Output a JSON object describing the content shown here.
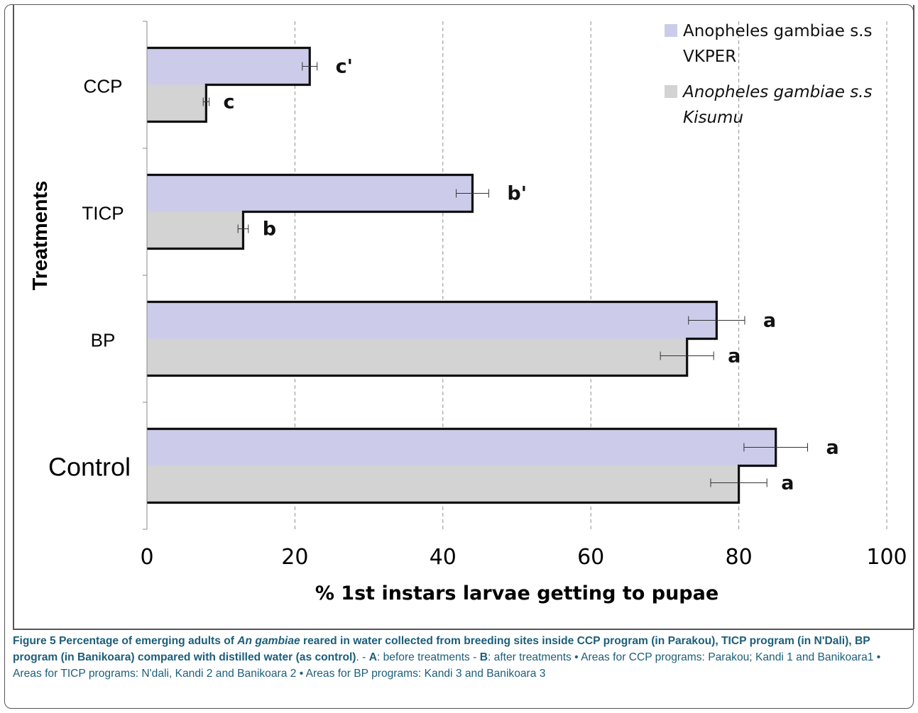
{
  "chart_data": {
    "type": "bar",
    "orientation": "horizontal",
    "categories": [
      "CCP",
      "TICP",
      "BP",
      "Control"
    ],
    "series": [
      {
        "name": "Anopheles gambiae s.s VKPER",
        "legend_lines": [
          "Anopheles gambiae s.s",
          "VKPER"
        ],
        "color": "#ccccea",
        "values": [
          22,
          44,
          77,
          85
        ],
        "errors": [
          1,
          2.2,
          3.8,
          4.3
        ],
        "labels": [
          "c'",
          "b'",
          "a",
          "a"
        ]
      },
      {
        "name": "Anopheles gambiae s.s Kisumu",
        "legend_lines": [
          "Anopheles gambiae s.s",
          "Kisumu"
        ],
        "color": "#d3d3d3",
        "values": [
          8,
          13,
          73,
          80
        ],
        "errors": [
          0.4,
          0.7,
          3.6,
          3.8
        ],
        "labels": [
          "c",
          "b",
          "a",
          "a"
        ]
      }
    ],
    "xlabel": "% 1st instars larvae getting to pupae",
    "ylabel": "Treatments",
    "xlim": [
      0,
      100
    ],
    "xticks": [
      0,
      20,
      40,
      60,
      80,
      100
    ],
    "grid": "vertical dashed",
    "legend_position": "top-right"
  },
  "caption": {
    "figure_label": "Figure 5",
    "title_part1": "Percentage of emerging adults of",
    "title_italic": "An gambiae",
    "title_part2": "reared in water collected from breeding sites inside CCP program (in Parakou), TICP program (in N'Dali), BP program (in Banikoara) compared with distilled water (as control)",
    "text_a": ". - ",
    "label_a": "A",
    "text_before": ": before treatments - ",
    "label_b": "B",
    "text_after": ": after treatments • Areas for CCP programs: Parakou; Kandi 1 and Banikoara1 • Areas for TICP programs: N'dali, Kandi 2 and Banikoara 2 • Areas for BP programs: Kandi 3 and Banikoara 3"
  }
}
